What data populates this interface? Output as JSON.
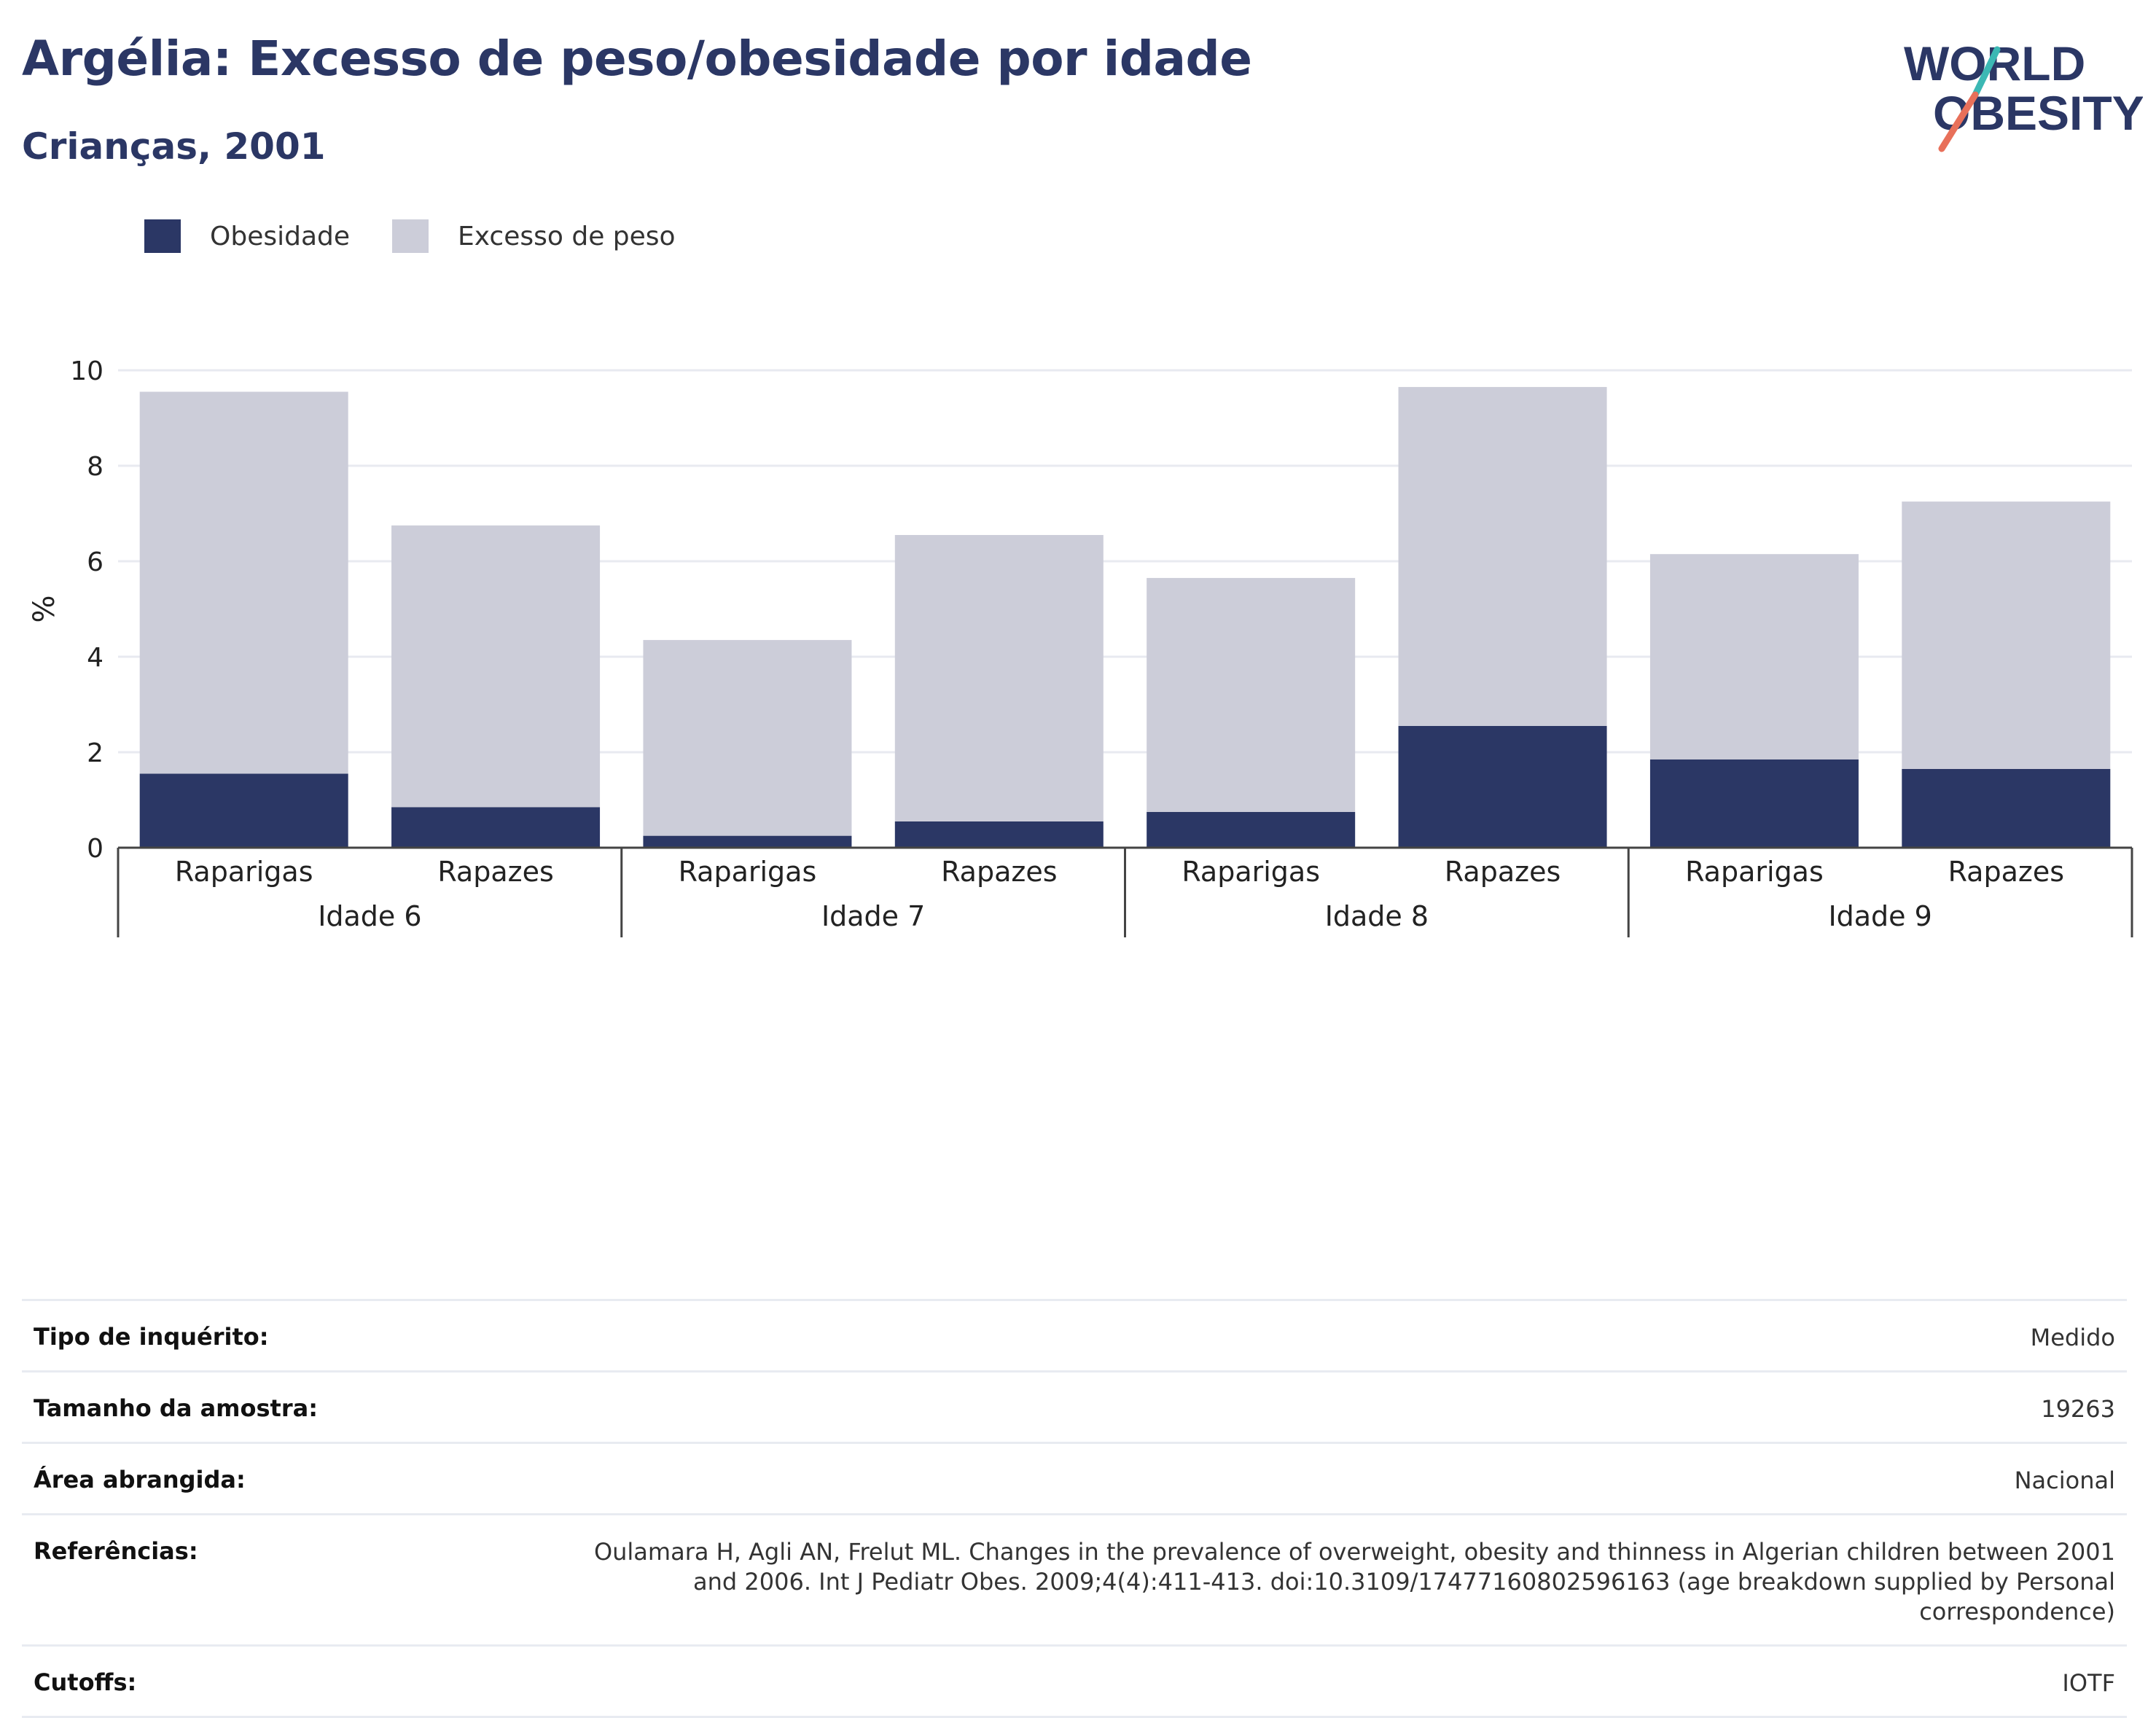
{
  "title": "Argélia: Excesso de peso/obesidade por idade",
  "subtitle": "Crianças, 2001",
  "logo": {
    "line1": "WORLD",
    "line2": "OBESITY"
  },
  "colors": {
    "obesity": "#2b3765",
    "overweight": "#cccdd9",
    "title": "#2b3765",
    "grid": "#e8eaf0",
    "logo_teal": "#3cb8b4",
    "logo_coral": "#e8705a"
  },
  "chart_data": {
    "type": "bar",
    "stacked": true,
    "ylabel": "%",
    "ylim": [
      0,
      10
    ],
    "yticks": [
      0,
      2,
      4,
      6,
      8,
      10
    ],
    "grid": true,
    "legend_position": "top-left",
    "groups": [
      "Idade 6",
      "Idade 7",
      "Idade 8",
      "Idade 9"
    ],
    "categories": [
      "Raparigas",
      "Rapazes",
      "Raparigas",
      "Rapazes",
      "Raparigas",
      "Rapazes",
      "Raparigas",
      "Rapazes"
    ],
    "series": [
      {
        "name": "Obesidade",
        "values": [
          1.55,
          0.85,
          0.25,
          0.55,
          0.75,
          2.55,
          1.85,
          1.65
        ]
      },
      {
        "name": "Excesso de peso",
        "values": [
          8.0,
          5.9,
          4.1,
          6.0,
          4.9,
          7.1,
          4.3,
          5.6
        ]
      }
    ]
  },
  "info": [
    {
      "label": "Tipo de inquérito:",
      "value": "Medido"
    },
    {
      "label": "Tamanho da amostra:",
      "value": "19263"
    },
    {
      "label": "Área abrangida:",
      "value": "Nacional"
    },
    {
      "label": "Referências:",
      "value": "Oulamara H, Agli AN, Frelut ML. Changes in the prevalence of overweight, obesity and thinness in Algerian children between 2001 and 2006. Int J Pediatr Obes. 2009;4(4):411-413. doi:10.3109/17477160802596163 (age breakdown supplied by Personal correspondence)"
    },
    {
      "label": "Cutoffs:",
      "value": "IOTF"
    }
  ]
}
